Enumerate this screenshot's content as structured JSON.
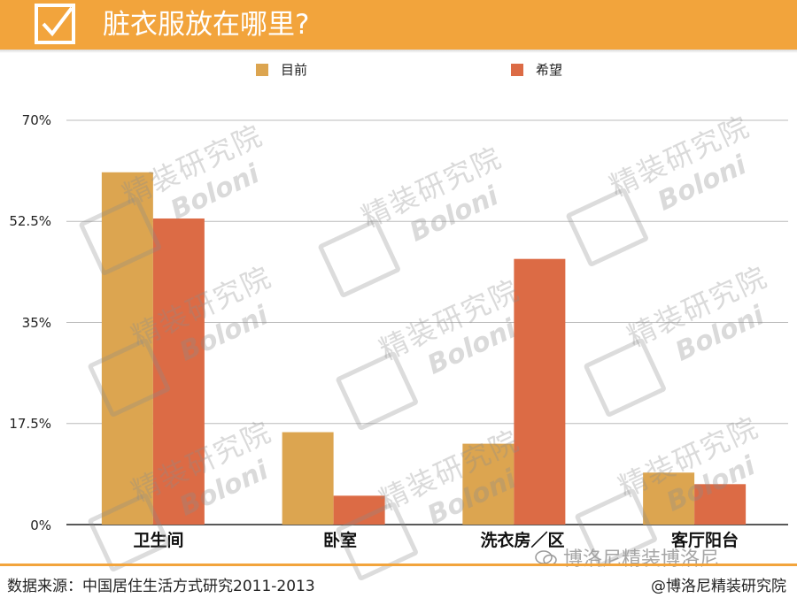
{
  "title": "脏衣服放在哪里?",
  "header": {
    "icon": "checkbox-check-icon"
  },
  "colors": {
    "header": "#f2a43c",
    "current": "#dca550",
    "hope": "#dc6b45",
    "axis": "#222222",
    "grid": "#bbbbbb"
  },
  "chart_data": {
    "type": "bar",
    "title": "脏衣服放在哪里?",
    "categories": [
      "卫生间",
      "卧室",
      "洗衣房／区",
      "客厅阳台"
    ],
    "series": [
      {
        "name": "目前",
        "values": [
          61,
          16,
          14,
          9
        ]
      },
      {
        "name": "希望",
        "values": [
          53,
          5,
          46,
          7
        ]
      }
    ],
    "y_ticks": [
      "0%",
      "17.5%",
      "35%",
      "52.5%",
      "70%"
    ],
    "ylim": [
      0,
      70
    ],
    "grid": true,
    "legend_position": "top"
  },
  "watermark": {
    "cn": "精装研究院",
    "en": "Boloni"
  },
  "footer": {
    "source": "数据来源：中国居住生活方式研究2011-2013",
    "credit": "@博洛尼精装研究院",
    "wechat": "博洛尼精装博洛尼"
  }
}
